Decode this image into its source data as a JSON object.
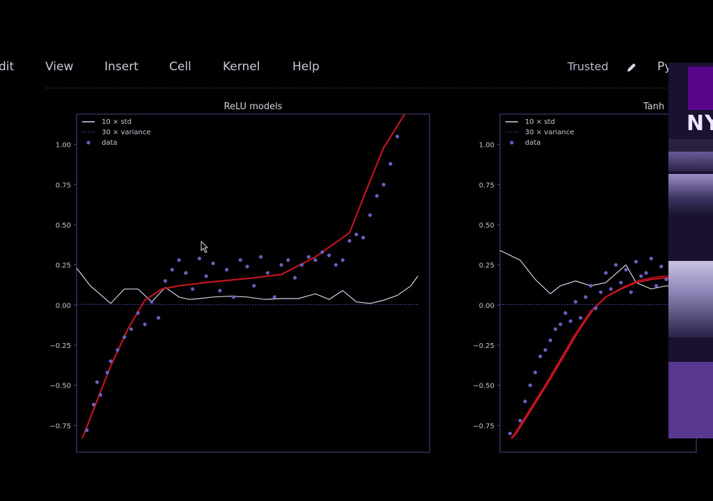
{
  "menubar": {
    "items": [
      "dit",
      "View",
      "Insert",
      "Cell",
      "Kernel",
      "Help"
    ],
    "trusted_label": "Trusted",
    "kernel_label": "Py"
  },
  "nyu": {
    "logo_text": "NY"
  },
  "colors": {
    "fit_line": "#c41420",
    "std_line": "#d6d6ea",
    "variance_line": "#4a4ab0",
    "data_points": "#6a5fbf",
    "axis": "#4a4a8a"
  },
  "chart_data": [
    {
      "type": "scatter",
      "title": "ReLU models",
      "xlabel": "",
      "ylabel": "",
      "ylim": [
        -0.9,
        1.12
      ],
      "xlim": [
        0,
        1
      ],
      "yticks": [
        "1.00",
        "0.75",
        "0.50",
        "0.25",
        "0.00",
        "−0.25",
        "−0.50",
        "−0.75"
      ],
      "legend": [
        "10 × std",
        "30 × variance",
        "data"
      ],
      "series": [
        {
          "name": "10 × std",
          "kind": "line",
          "x": [
            0,
            0.04,
            0.1,
            0.14,
            0.18,
            0.22,
            0.26,
            0.3,
            0.33,
            0.36,
            0.4,
            0.45,
            0.5,
            0.55,
            0.6,
            0.65,
            0.7,
            0.74,
            0.78,
            0.82,
            0.86,
            0.9,
            0.94,
            0.98,
            1.0
          ],
          "y": [
            0.23,
            0.12,
            0.01,
            0.1,
            0.1,
            0.02,
            0.11,
            0.05,
            0.035,
            0.04,
            0.05,
            0.055,
            0.05,
            0.035,
            0.04,
            0.04,
            0.07,
            0.035,
            0.09,
            0.02,
            0.01,
            0.03,
            0.06,
            0.12,
            0.18
          ]
        },
        {
          "name": "30 × variance",
          "kind": "line",
          "x": [
            0,
            0.25,
            0.5,
            0.75,
            1.0
          ],
          "y": [
            0.005,
            0.003,
            0.002,
            0.003,
            0.004
          ]
        },
        {
          "name": "fit",
          "kind": "line",
          "x": [
            0,
            0.05,
            0.1,
            0.15,
            0.2,
            0.25,
            0.3,
            0.4,
            0.5,
            0.6,
            0.7,
            0.8,
            0.85,
            0.9,
            0.95,
            0.98
          ],
          "y": [
            -0.92,
            -0.65,
            -0.38,
            -0.15,
            0.03,
            0.1,
            0.12,
            0.145,
            0.165,
            0.19,
            0.3,
            0.45,
            0.72,
            0.98,
            1.15,
            1.25
          ]
        },
        {
          "name": "data",
          "kind": "points",
          "x": [
            0.01,
            0.03,
            0.05,
            0.06,
            0.07,
            0.09,
            0.1,
            0.12,
            0.14,
            0.16,
            0.18,
            0.2,
            0.22,
            0.24,
            0.26,
            0.28,
            0.3,
            0.32,
            0.34,
            0.36,
            0.38,
            0.4,
            0.42,
            0.44,
            0.46,
            0.48,
            0.5,
            0.52,
            0.54,
            0.56,
            0.58,
            0.6,
            0.62,
            0.64,
            0.66,
            0.68,
            0.7,
            0.72,
            0.74,
            0.76,
            0.78,
            0.8,
            0.82,
            0.84,
            0.86,
            0.88,
            0.9,
            0.92,
            0.94
          ],
          "y": [
            -0.85,
            -0.78,
            -0.62,
            -0.48,
            -0.56,
            -0.42,
            -0.35,
            -0.28,
            -0.2,
            -0.15,
            -0.05,
            -0.12,
            0.02,
            -0.08,
            0.15,
            0.22,
            0.28,
            0.2,
            0.1,
            0.29,
            0.18,
            0.26,
            0.09,
            0.22,
            0.05,
            0.28,
            0.24,
            0.12,
            0.3,
            0.2,
            0.05,
            0.25,
            0.28,
            0.17,
            0.25,
            0.3,
            0.28,
            0.33,
            0.31,
            0.25,
            0.28,
            0.4,
            0.44,
            0.42,
            0.56,
            0.68,
            0.75,
            0.88,
            1.05
          ]
        }
      ]
    },
    {
      "type": "scatter",
      "title": "Tanh",
      "xlabel": "",
      "ylabel": "",
      "ylim": [
        -0.9,
        1.12
      ],
      "xlim": [
        0,
        1
      ],
      "yticks": [
        "1.00",
        "0.75",
        "0.50",
        "0.25",
        "0.00",
        "−0.25",
        "−0.50",
        "−0.75"
      ],
      "legend": [
        "10 × std",
        "30 × variance",
        "data"
      ],
      "series": [
        {
          "name": "10 × std",
          "kind": "line",
          "x": [
            0,
            0.08,
            0.14,
            0.2,
            0.24,
            0.3,
            0.36,
            0.42,
            0.5,
            0.54,
            0.6,
            0.66,
            0.72,
            0.8,
            0.9
          ],
          "y": [
            0.34,
            0.28,
            0.16,
            0.07,
            0.12,
            0.15,
            0.12,
            0.14,
            0.25,
            0.14,
            0.1,
            0.12,
            0.1,
            0.08,
            0.05
          ]
        },
        {
          "name": "30 × variance",
          "kind": "line",
          "x": [
            0,
            0.45,
            0.9
          ],
          "y": [
            0.004,
            0.003,
            0.003
          ]
        },
        {
          "name": "fit",
          "kind": "line",
          "x": [
            0,
            0.06,
            0.12,
            0.18,
            0.24,
            0.3,
            0.36,
            0.42,
            0.48,
            0.54,
            0.6,
            0.66,
            0.72,
            0.8,
            0.9
          ],
          "y": [
            -0.92,
            -0.8,
            -0.65,
            -0.5,
            -0.34,
            -0.18,
            -0.04,
            0.05,
            0.1,
            0.14,
            0.16,
            0.17,
            0.17,
            0.17,
            0.17
          ]
        },
        {
          "name": "data",
          "kind": "points",
          "x": [
            0.04,
            0.06,
            0.08,
            0.1,
            0.12,
            0.14,
            0.16,
            0.18,
            0.2,
            0.22,
            0.24,
            0.26,
            0.28,
            0.3,
            0.32,
            0.34,
            0.36,
            0.38,
            0.4,
            0.42,
            0.44,
            0.46,
            0.48,
            0.5,
            0.52,
            0.54,
            0.56,
            0.58,
            0.6,
            0.62,
            0.64,
            0.66,
            0.68,
            0.7,
            0.72
          ],
          "y": [
            -0.8,
            -0.85,
            -0.72,
            -0.6,
            -0.5,
            -0.42,
            -0.32,
            -0.28,
            -0.22,
            -0.15,
            -0.12,
            -0.05,
            -0.1,
            0.02,
            -0.08,
            0.05,
            0.12,
            -0.02,
            0.08,
            0.2,
            0.1,
            0.25,
            0.14,
            0.22,
            0.08,
            0.27,
            0.18,
            0.2,
            0.29,
            0.12,
            0.24,
            0.16,
            0.2,
            0.1,
            0.15
          ]
        }
      ]
    }
  ]
}
